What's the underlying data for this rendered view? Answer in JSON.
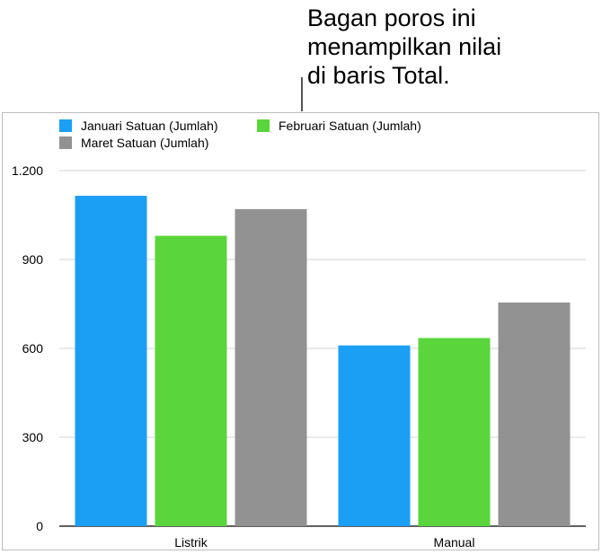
{
  "callout": {
    "text": "Bagan poros ini\nmenampilkan nilai\ndi baris Total."
  },
  "chart_data": {
    "type": "bar",
    "categories": [
      "Listrik",
      "Manual"
    ],
    "series": [
      {
        "name": "Januari Satuan (Jumlah)",
        "color": "#1a9ff5",
        "values": [
          1115,
          610
        ]
      },
      {
        "name": "Februari Satuan (Jumlah)",
        "color": "#5ad63c",
        "values": [
          980,
          635
        ]
      },
      {
        "name": "Maret Satuan (Jumlah)",
        "color": "#929292",
        "values": [
          1070,
          755
        ]
      }
    ],
    "yticks": [
      0,
      300,
      600,
      900,
      1200
    ],
    "ytick_labels": [
      "0",
      "300",
      "600",
      "900",
      "1.200"
    ],
    "ylim": [
      0,
      1200
    ],
    "grid": true,
    "legend_position": "top-left",
    "title": "",
    "xlabel": "",
    "ylabel": ""
  }
}
